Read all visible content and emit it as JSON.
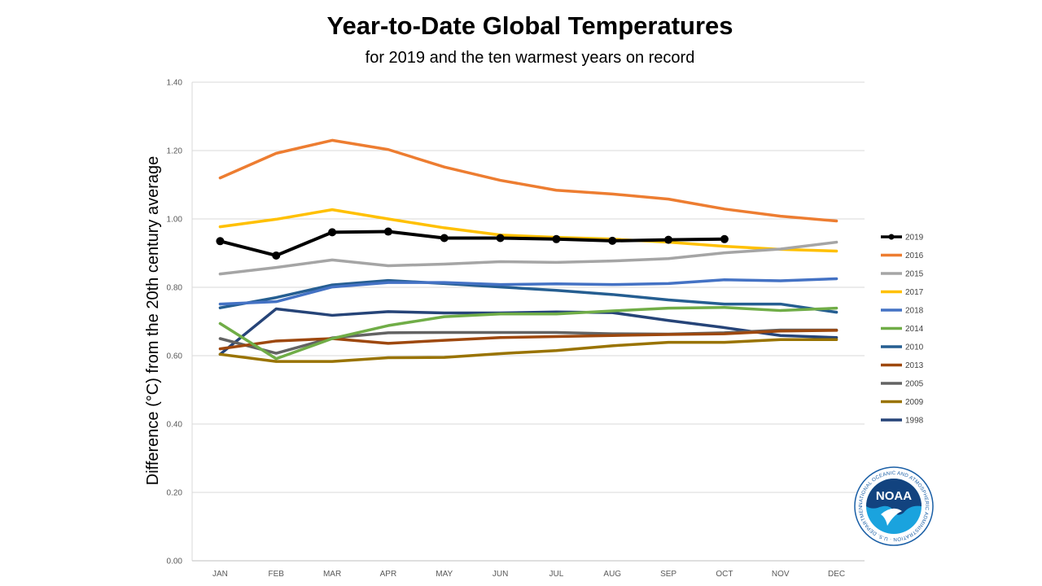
{
  "chart_data": {
    "type": "line",
    "title": "Year-to-Date Global Temperatures",
    "subtitle": "for 2019 and the ten warmest years on record",
    "xlabel": "",
    "ylabel": "Difference (°C) from the 20th century average",
    "ylim": [
      0,
      1.4
    ],
    "yticks": [
      "0.00",
      "0.20",
      "0.40",
      "0.60",
      "0.80",
      "1.00",
      "1.20",
      "1.40"
    ],
    "grid": true,
    "legend_position": "right",
    "categories": [
      "JAN",
      "FEB",
      "MAR",
      "APR",
      "MAY",
      "JUN",
      "JUL",
      "AUG",
      "SEP",
      "OCT",
      "NOV",
      "DEC"
    ],
    "series": [
      {
        "name": "2019",
        "color": "#000000",
        "markers": true,
        "values": [
          0.935,
          0.893,
          0.961,
          0.963,
          0.944,
          0.944,
          0.941,
          0.936,
          0.939,
          0.941,
          null,
          null
        ]
      },
      {
        "name": "2016",
        "color": "#ED7D31",
        "values": [
          1.12,
          1.192,
          1.23,
          1.203,
          1.152,
          1.113,
          1.084,
          1.073,
          1.058,
          1.029,
          1.008,
          0.994
        ]
      },
      {
        "name": "2015",
        "color": "#A5A5A5",
        "values": [
          0.839,
          0.858,
          0.88,
          0.863,
          0.868,
          0.875,
          0.873,
          0.877,
          0.884,
          0.901,
          0.912,
          0.932
        ]
      },
      {
        "name": "2017",
        "color": "#FFC000",
        "values": [
          0.977,
          0.999,
          1.027,
          1.0,
          0.974,
          0.953,
          0.946,
          0.941,
          0.932,
          0.92,
          0.911,
          0.906
        ]
      },
      {
        "name": "2018",
        "color": "#4472C4",
        "values": [
          0.751,
          0.758,
          0.801,
          0.814,
          0.814,
          0.808,
          0.81,
          0.808,
          0.811,
          0.822,
          0.819,
          0.825
        ]
      },
      {
        "name": "2014",
        "color": "#70AD47",
        "values": [
          0.694,
          0.591,
          0.65,
          0.688,
          0.714,
          0.722,
          0.722,
          0.731,
          0.739,
          0.741,
          0.732,
          0.739
        ]
      },
      {
        "name": "2010",
        "color": "#255E91",
        "values": [
          0.74,
          0.77,
          0.807,
          0.82,
          0.811,
          0.801,
          0.791,
          0.779,
          0.763,
          0.751,
          0.751,
          0.727
        ]
      },
      {
        "name": "2013",
        "color": "#9E480E",
        "values": [
          0.62,
          0.643,
          0.65,
          0.636,
          0.645,
          0.653,
          0.656,
          0.659,
          0.662,
          0.664,
          0.672,
          0.674
        ]
      },
      {
        "name": "2005",
        "color": "#636363",
        "values": [
          0.65,
          0.607,
          0.652,
          0.667,
          0.668,
          0.668,
          0.668,
          0.664,
          0.663,
          0.667,
          0.675,
          0.675
        ]
      },
      {
        "name": "2009",
        "color": "#997300",
        "values": [
          0.604,
          0.583,
          0.583,
          0.594,
          0.595,
          0.606,
          0.615,
          0.629,
          0.639,
          0.639,
          0.647,
          0.647
        ]
      },
      {
        "name": "1998",
        "color": "#264478",
        "values": [
          0.604,
          0.737,
          0.718,
          0.729,
          0.725,
          0.725,
          0.728,
          0.726,
          0.703,
          0.682,
          0.659,
          0.653
        ]
      }
    ]
  },
  "logo": {
    "text": "NOAA",
    "ring_text": "NATIONAL OCEANIC AND ATMOSPHERIC ADMINISTRATION · U.S. DEPARTMENT OF COMMERCE ·"
  }
}
